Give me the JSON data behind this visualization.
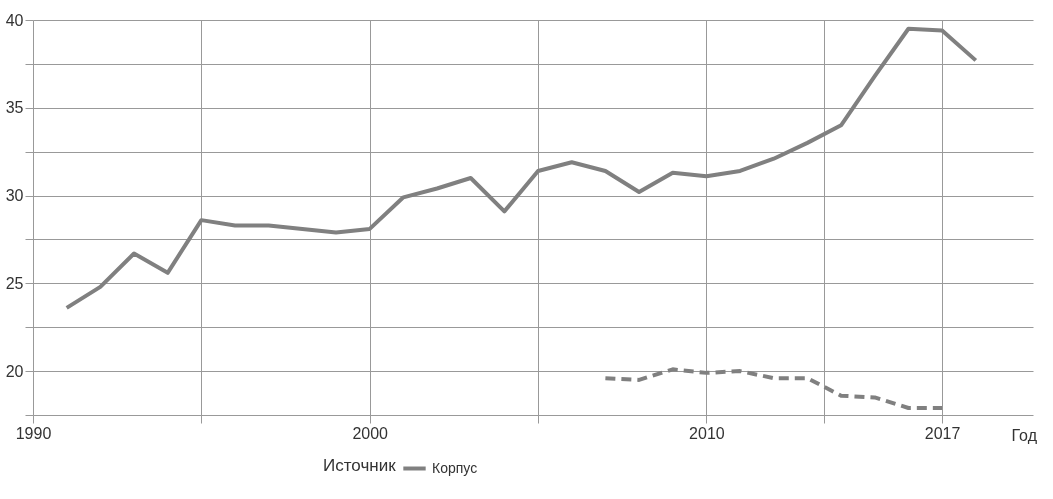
{
  "chart_data": {
    "type": "line",
    "xlabel": "Год",
    "legend_title": "Источник",
    "x": [
      1991,
      1992,
      1993,
      1994,
      1995,
      1996,
      1997,
      1998,
      1999,
      2000,
      2001,
      2002,
      2003,
      2004,
      2005,
      2006,
      2007,
      2008,
      2009,
      2010,
      2011,
      2012,
      2013,
      2014,
      2015,
      2016,
      2017,
      2018
    ],
    "series": [
      {
        "name": "Корпус",
        "color": "#808080",
        "line_style": "solid",
        "values": [
          23.6,
          24.8,
          26.7,
          25.6,
          28.6,
          28.3,
          28.3,
          28.1,
          27.9,
          28.1,
          29.9,
          30.4,
          31.0,
          29.1,
          31.4,
          31.9,
          31.4,
          30.2,
          31.3,
          31.1,
          31.4,
          32.1,
          33.0,
          34.0,
          36.8,
          39.5,
          39.4,
          37.7
        ]
      },
      {
        "color": "#808080",
        "line_style": "dashed",
        "x": [
          2007,
          2008,
          2009,
          2010,
          2011,
          2012,
          2013,
          2014,
          2015,
          2016,
          2017
        ],
        "values": [
          19.6,
          19.5,
          20.1,
          19.9,
          20.0,
          19.6,
          19.6,
          18.6,
          18.5,
          17.9,
          17.9
        ]
      }
    ],
    "xlim": [
      1990,
      2019.7
    ],
    "xticks": [
      1990,
      {
        "value": 1995,
        "label": null
      },
      2000,
      {
        "value": 2005,
        "label": null
      },
      2010,
      {
        "value": 2013.5,
        "label": null
      },
      2017
    ],
    "ylim": [
      17.5,
      40
    ],
    "yticks": [
      {
        "value": 17.5,
        "label": null
      },
      20,
      {
        "value": 22.5,
        "label": null
      },
      25,
      {
        "value": 27.5,
        "label": null
      },
      30,
      {
        "value": 32.5,
        "label": null
      },
      35,
      {
        "value": 37.5,
        "label": null
      },
      40
    ],
    "grid": true,
    "legend": "bottom",
    "marker": "none"
  }
}
